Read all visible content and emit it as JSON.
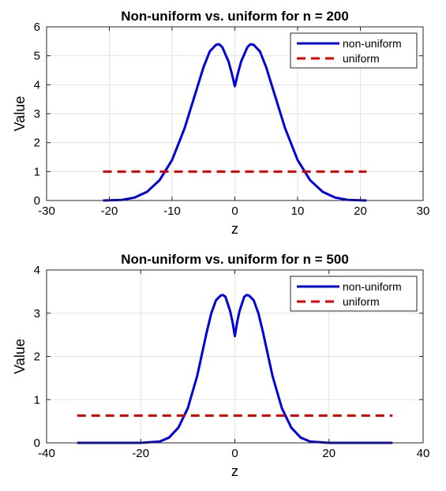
{
  "chart_data": [
    {
      "type": "line",
      "title": "Non-uniform vs. uniform for n = 200",
      "xlabel": "z",
      "ylabel": "Value",
      "xlim": [
        -30,
        30
      ],
      "ylim": [
        0,
        6
      ],
      "xticks": [
        -30,
        -20,
        -10,
        0,
        10,
        20,
        30
      ],
      "yticks": [
        0,
        1,
        2,
        3,
        4,
        5,
        6
      ],
      "grid": true,
      "legend_position": "top-right",
      "series": [
        {
          "name": "non-uniform",
          "color": "#0000dd",
          "style": "solid",
          "x": [
            -21,
            -18,
            -16,
            -14,
            -12,
            -10,
            -8,
            -6,
            -5,
            -4,
            -3,
            -2.5,
            -2,
            -1,
            -0.5,
            0,
            0.5,
            1,
            2,
            2.5,
            3,
            4,
            5,
            6,
            8,
            10,
            12,
            14,
            16,
            18,
            21
          ],
          "y": [
            0.0,
            0.02,
            0.1,
            0.3,
            0.7,
            1.4,
            2.5,
            3.9,
            4.6,
            5.15,
            5.38,
            5.4,
            5.3,
            4.8,
            4.4,
            3.95,
            4.4,
            4.8,
            5.3,
            5.4,
            5.38,
            5.15,
            4.6,
            3.9,
            2.5,
            1.4,
            0.7,
            0.3,
            0.1,
            0.02,
            0.0
          ]
        },
        {
          "name": "uniform",
          "color": "#dd0000",
          "style": "dashed",
          "x": [
            -21,
            21
          ],
          "y": [
            1.0,
            1.0
          ]
        }
      ]
    },
    {
      "type": "line",
      "title": "Non-uniform vs. uniform for n = 500",
      "xlabel": "z",
      "ylabel": "Value",
      "xlim": [
        -40,
        40
      ],
      "ylim": [
        0,
        4
      ],
      "xticks": [
        -40,
        -20,
        0,
        20,
        40
      ],
      "yticks": [
        0,
        1,
        2,
        3,
        4
      ],
      "grid": true,
      "legend_position": "top-right",
      "series": [
        {
          "name": "non-uniform",
          "color": "#0000dd",
          "style": "solid",
          "x": [
            -33.5,
            -20,
            -16,
            -14,
            -12,
            -10,
            -8,
            -6,
            -5,
            -4,
            -3,
            -2.5,
            -2,
            -1,
            -0.5,
            0,
            0.5,
            1,
            2,
            2.5,
            3,
            4,
            5,
            6,
            8,
            10,
            12,
            14,
            16,
            20,
            33.5
          ],
          "y": [
            0.0,
            0.0,
            0.03,
            0.12,
            0.35,
            0.8,
            1.55,
            2.55,
            3.0,
            3.3,
            3.41,
            3.42,
            3.38,
            3.05,
            2.8,
            2.47,
            2.8,
            3.05,
            3.38,
            3.42,
            3.41,
            3.3,
            3.0,
            2.55,
            1.55,
            0.8,
            0.35,
            0.12,
            0.03,
            0.0,
            0.0
          ]
        },
        {
          "name": "uniform",
          "color": "#dd0000",
          "style": "dashed",
          "x": [
            -33.5,
            33.5
          ],
          "y": [
            0.63,
            0.63
          ]
        }
      ]
    }
  ]
}
